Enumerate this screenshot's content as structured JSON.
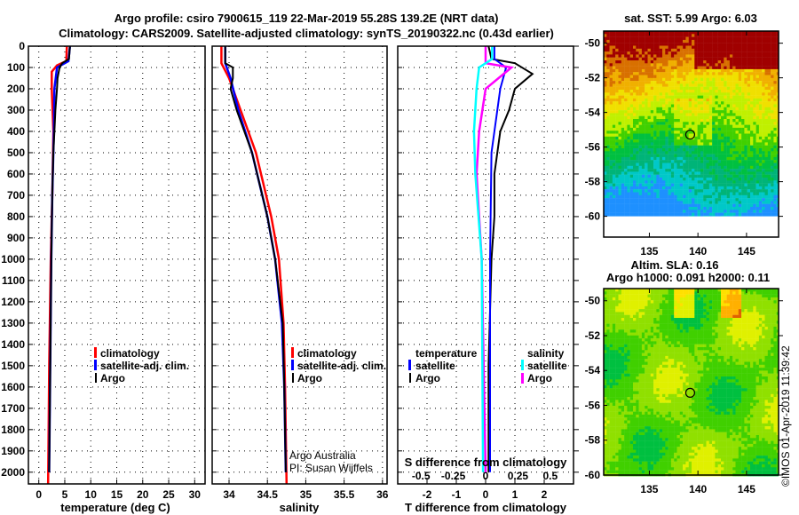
{
  "title_line1": "Argo profile: csiro 7900615_119 22-Mar-2019 55.28S 139.2E (NRT data)",
  "title_line2": "Climatology: CARS2009. Satellite-adjusted climatology: synTS_20190322.nc (0.43d earlier)",
  "colors": {
    "climatology": "#ff0000",
    "satellite": "#0000ff",
    "argo": "#000000",
    "sat_salinity": "#00ffff",
    "argo_salinity": "#ff00ff"
  },
  "credit_line1": "Argo Australia",
  "credit_line2": "PI: Susan Wijffels",
  "stamp": "©IMOS 01-Apr-2019 11:39:42",
  "chart_data": [
    {
      "type": "line",
      "name": "temperature",
      "xlabel": "temperature (deg C)",
      "ylabel": "depth",
      "xlim": [
        -2,
        32
      ],
      "ylim": [
        2055,
        0
      ],
      "xticks": [
        0,
        5,
        10,
        15,
        20,
        25,
        30
      ],
      "yticks": [
        0,
        100,
        200,
        300,
        400,
        500,
        600,
        700,
        800,
        900,
        1000,
        1100,
        1200,
        1300,
        1400,
        1500,
        1600,
        1700,
        1800,
        1900,
        2000
      ],
      "legend": [
        "climatology",
        "satellite-adj. clim.",
        "Argo"
      ],
      "series": [
        {
          "name": "climatology",
          "color": "#ff0000",
          "depth": [
            0,
            70,
            90,
            120,
            200,
            400,
            700,
            1000,
            1500,
            2055
          ],
          "values": [
            5.4,
            5.3,
            3.5,
            2.5,
            2.5,
            2.8,
            2.6,
            2.3,
            2.0,
            1.8
          ]
        },
        {
          "name": "satellite-adj. clim.",
          "color": "#0000ff",
          "depth": [
            0,
            70,
            100,
            200,
            400,
            700,
            1000,
            1500,
            2000
          ],
          "values": [
            6.0,
            5.7,
            3.5,
            3.0,
            2.9,
            2.6,
            2.4,
            2.2,
            2.0
          ]
        },
        {
          "name": "Argo",
          "color": "#000000",
          "depth": [
            0,
            60,
            80,
            100,
            150,
            200,
            300,
            400,
            500,
            700,
            1000,
            1500,
            2000
          ],
          "values": [
            6.0,
            5.8,
            4.5,
            4.0,
            3.6,
            3.5,
            3.2,
            3.0,
            2.8,
            2.6,
            2.4,
            2.2,
            2.0
          ]
        }
      ]
    },
    {
      "type": "line",
      "name": "salinity",
      "xlabel": "salinity",
      "xlim": [
        33.78,
        36.06
      ],
      "ylim": [
        2055,
        0
      ],
      "xticks": [
        34,
        34.5,
        35,
        35.5,
        36
      ],
      "legend": [
        "climatology",
        "satellite-adj. clim.",
        "Argo"
      ],
      "series": [
        {
          "name": "climatology",
          "color": "#ff0000",
          "depth": [
            0,
            80,
            150,
            300,
            500,
            800,
            1000,
            1300,
            1600,
            2055
          ],
          "values": [
            33.9,
            33.9,
            34.0,
            34.15,
            34.35,
            34.55,
            34.65,
            34.71,
            34.73,
            34.75
          ]
        },
        {
          "name": "satellite-adj. clim.",
          "color": "#0000ff",
          "depth": [
            0,
            80,
            150,
            300,
            500,
            800,
            1000,
            1300,
            1600,
            2000
          ],
          "values": [
            33.95,
            33.95,
            34.02,
            34.12,
            34.3,
            34.5,
            34.6,
            34.69,
            34.72,
            34.74
          ]
        },
        {
          "name": "Argo",
          "color": "#000000",
          "depth": [
            0,
            80,
            100,
            150,
            200,
            300,
            500,
            800,
            1000,
            1300,
            1600,
            2000
          ],
          "values": [
            33.95,
            33.95,
            34.05,
            34.05,
            34.02,
            34.1,
            34.3,
            34.5,
            34.6,
            34.7,
            34.72,
            34.74
          ]
        }
      ]
    },
    {
      "type": "line",
      "name": "difference",
      "xlabel": "T difference from climatology",
      "xlabel2": "S difference from climatology",
      "xlim": [
        -3,
        3
      ],
      "xlim_s": [
        -0.68,
        0.68
      ],
      "xticks": [
        -2,
        -1,
        0,
        1,
        2
      ],
      "xticks_s": [
        -0.5,
        -0.25,
        0,
        0.25,
        0.5
      ],
      "ylim": [
        2055,
        0
      ],
      "legend_t": {
        "title": "temperature",
        "items": [
          "satellite",
          "Argo"
        ]
      },
      "legend_s": {
        "title": "salinity",
        "items": [
          "satellite",
          "Argo"
        ]
      },
      "series": [
        {
          "name": "temperature Argo",
          "axis": "T",
          "color": "#000000",
          "depth": [
            0,
            60,
            80,
            130,
            200,
            300,
            400,
            600,
            800,
            1000,
            1500,
            2000
          ],
          "values": [
            0.1,
            0.2,
            1.0,
            1.6,
            1.0,
            0.8,
            0.5,
            0.3,
            0.3,
            0.2,
            0.1,
            0.1
          ]
        },
        {
          "name": "temperature satellite",
          "axis": "T",
          "color": "#0000ff",
          "depth": [
            0,
            60,
            100,
            200,
            300,
            500,
            1000,
            2000
          ],
          "values": [
            0.3,
            0.3,
            0.7,
            0.5,
            0.4,
            0.2,
            0.15,
            0.15
          ]
        },
        {
          "name": "salinity Argo",
          "axis": "S",
          "color": "#ff00ff",
          "depth": [
            0,
            80,
            100,
            200,
            400,
            600,
            1000,
            2000
          ],
          "values": [
            0.0,
            0.0,
            0.2,
            0.0,
            -0.05,
            -0.07,
            -0.03,
            0.0
          ]
        },
        {
          "name": "salinity satellite",
          "axis": "S",
          "color": "#00ffff",
          "depth": [
            0,
            60,
            100,
            200,
            400,
            600,
            1000,
            2000
          ],
          "values": [
            0.05,
            0.05,
            -0.05,
            -0.07,
            -0.09,
            -0.08,
            -0.03,
            -0.02
          ]
        }
      ]
    },
    {
      "type": "heatmap",
      "name": "sst-map",
      "title": "sat. SST: 5.99 Argo: 6.03",
      "xticks": [
        135,
        140,
        145
      ],
      "yticks": [
        -50,
        -52,
        -54,
        -56,
        -58,
        -60
      ],
      "xlim": [
        130.3,
        148.3
      ],
      "ylim": [
        -61.2,
        -49.3
      ],
      "argo_position": {
        "lon": 139.2,
        "lat": -55.28
      }
    },
    {
      "type": "heatmap",
      "name": "sla-map",
      "title_line1": "Altim. SLA: 0.16",
      "title_line2": "Argo h1000: 0.091 h2000: 0.11",
      "xticks": [
        135,
        140,
        145
      ],
      "yticks": [
        -50,
        -52,
        -54,
        -56,
        -58,
        -60
      ],
      "xlim": [
        130.3,
        148.3
      ],
      "ylim": [
        -60,
        -49.3
      ],
      "argo_position": {
        "lon": 139.2,
        "lat": -55.28
      }
    }
  ]
}
